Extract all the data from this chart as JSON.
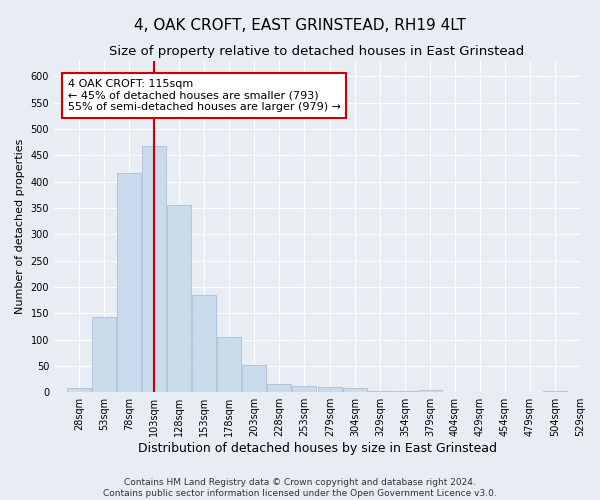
{
  "title": "4, OAK CROFT, EAST GRINSTEAD, RH19 4LT",
  "subtitle": "Size of property relative to detached houses in East Grinstead",
  "xlabel": "Distribution of detached houses by size in East Grinstead",
  "ylabel": "Number of detached properties",
  "footer_line1": "Contains HM Land Registry data © Crown copyright and database right 2024.",
  "footer_line2": "Contains public sector information licensed under the Open Government Licence v3.0.",
  "bar_color": "#c9daea",
  "bar_edgecolor": "#aac0d8",
  "vline_color": "#cc0000",
  "vline_x": 115,
  "annotation_line1": "4 OAK CROFT: 115sqm",
  "annotation_line2": "← 45% of detached houses are smaller (793)",
  "annotation_line3": "55% of semi-detached houses are larger (979) →",
  "annotation_box_edgecolor": "#cc0000",
  "bin_edges": [
    28,
    53,
    78,
    103,
    128,
    153,
    178,
    203,
    228,
    253,
    279,
    304,
    329,
    354,
    379,
    404,
    429,
    454,
    479,
    504,
    529
  ],
  "bin_heights": [
    8,
    143,
    416,
    467,
    355,
    185,
    105,
    52,
    15,
    12,
    9,
    8,
    3,
    2,
    4,
    0,
    0,
    0,
    0,
    2
  ],
  "ylim": [
    0,
    630
  ],
  "yticks": [
    0,
    50,
    100,
    150,
    200,
    250,
    300,
    350,
    400,
    450,
    500,
    550,
    600
  ],
  "background_color": "#e8edf4",
  "plot_bg_color": "#e8edf4",
  "title_fontsize": 11,
  "subtitle_fontsize": 9.5,
  "xlabel_fontsize": 9,
  "ylabel_fontsize": 8,
  "tick_fontsize": 7,
  "footer_fontsize": 6.5,
  "annotation_fontsize": 8
}
